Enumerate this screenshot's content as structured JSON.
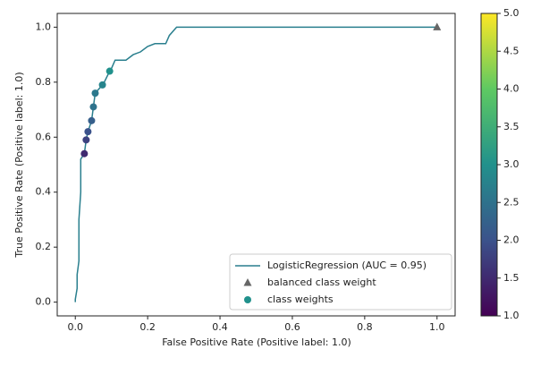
{
  "chart_data": {
    "type": "line",
    "xlabel": "False Positive Rate (Positive label: 1.0)",
    "ylabel": "True Positive Rate (Positive label: 1.0)",
    "xlim": [
      -0.05,
      1.05
    ],
    "ylim": [
      -0.05,
      1.05
    ],
    "xticks": [
      {
        "value": 0,
        "label": "0.0"
      },
      {
        "value": 0.2,
        "label": "0.2"
      },
      {
        "value": 0.4,
        "label": "0.4"
      },
      {
        "value": 0.6,
        "label": "0.6"
      },
      {
        "value": 0.8,
        "label": "0.8"
      },
      {
        "value": 1,
        "label": "1.0"
      }
    ],
    "yticks": [
      {
        "value": 0,
        "label": "0.0"
      },
      {
        "value": 0.2,
        "label": "0.2"
      },
      {
        "value": 0.4,
        "label": "0.4"
      },
      {
        "value": 0.6,
        "label": "0.6"
      },
      {
        "value": 0.8,
        "label": "0.8"
      },
      {
        "value": 1,
        "label": "1.0"
      }
    ],
    "legend": "lower right",
    "series": [
      {
        "name": "LogisticRegression (AUC = 0.95)",
        "type": "line",
        "color": "#2a7f8e",
        "x": [
          0,
          0,
          0.005,
          0.005,
          0.01,
          0.01,
          0.015,
          0.015,
          0.025,
          0.03,
          0.035,
          0.045,
          0.05,
          0.055,
          0.075,
          0.08,
          0.095,
          0.1,
          0.11,
          0.14,
          0.16,
          0.18,
          0.2,
          0.22,
          0.25,
          0.26,
          0.28,
          1.0
        ],
        "values": [
          0,
          0.01,
          0.05,
          0.1,
          0.15,
          0.3,
          0.4,
          0.52,
          0.54,
          0.59,
          0.62,
          0.66,
          0.71,
          0.76,
          0.79,
          0.8,
          0.84,
          0.85,
          0.88,
          0.88,
          0.9,
          0.91,
          0.93,
          0.94,
          0.94,
          0.97,
          1.0,
          1.0
        ]
      },
      {
        "name": "balanced class weight",
        "type": "scatter",
        "marker": "triangle",
        "color": "#666666",
        "x": [
          1.0
        ],
        "values": [
          1.0
        ]
      },
      {
        "name": "class weights",
        "type": "scatter",
        "marker": "circle",
        "x": [
          0.025,
          0.03,
          0.035,
          0.045,
          0.05,
          0.055,
          0.075,
          0.095
        ],
        "values": [
          0.54,
          0.59,
          0.62,
          0.66,
          0.71,
          0.76,
          0.79,
          0.84
        ],
        "c": [
          1.5,
          1.8,
          2.0,
          2.2,
          2.5,
          2.6,
          2.8,
          3.0
        ]
      }
    ],
    "colorbar": {
      "lim": [
        1,
        5
      ],
      "ticks": [
        {
          "value": 1,
          "label": "1.0"
        },
        {
          "value": 1.5,
          "label": "1.5"
        },
        {
          "value": 2,
          "label": "2.0"
        },
        {
          "value": 2.5,
          "label": "2.5"
        },
        {
          "value": 3,
          "label": "3.0"
        },
        {
          "value": 3.5,
          "label": "3.5"
        },
        {
          "value": 4,
          "label": "4.0"
        },
        {
          "value": 4.5,
          "label": "4.5"
        },
        {
          "value": 5,
          "label": "5.0"
        }
      ],
      "colormap": [
        "#440154",
        "#3b528b",
        "#21918c",
        "#5ec962",
        "#fde725"
      ]
    }
  }
}
